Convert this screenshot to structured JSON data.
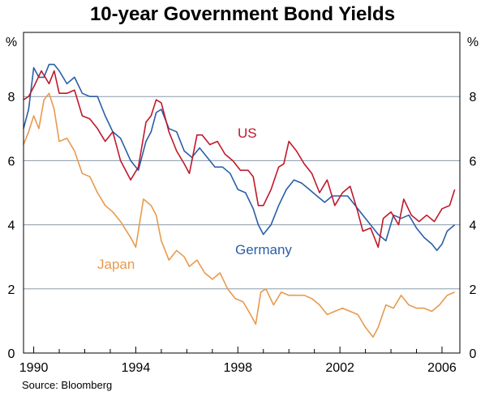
{
  "chart_data": {
    "type": "line",
    "title": "10-year Government Bond Yields",
    "source": "Source: Bloomberg",
    "y_unit_left": "%",
    "y_unit_right": "%",
    "ylim": [
      0,
      10
    ],
    "xlim": [
      1989.6,
      2006.7
    ],
    "y_ticks": [
      0,
      2,
      4,
      6,
      8
    ],
    "y_tick_labels": [
      "0",
      "2",
      "4",
      "6",
      "8"
    ],
    "x_ticks": [
      1990,
      1994,
      1998,
      2002,
      2006
    ],
    "x_tick_labels": [
      "1990",
      "1994",
      "1998",
      "2002",
      "2006"
    ],
    "grid": "horizontal at 2, 4, 6, 8",
    "legend": "inline labels",
    "series": [
      {
        "name": "US",
        "color": "#c0182b",
        "x": [
          1989.6,
          1989.8,
          1990.0,
          1990.3,
          1990.6,
          1990.8,
          1991.0,
          1991.3,
          1991.6,
          1991.9,
          1992.2,
          1992.5,
          1992.8,
          1993.1,
          1993.4,
          1993.8,
          1994.1,
          1994.4,
          1994.6,
          1994.8,
          1995.0,
          1995.3,
          1995.6,
          1995.9,
          1996.1,
          1996.4,
          1996.6,
          1996.9,
          1997.2,
          1997.5,
          1997.8,
          1998.1,
          1998.4,
          1998.6,
          1998.8,
          1999.0,
          1999.3,
          1999.6,
          1999.8,
          2000.0,
          2000.3,
          2000.6,
          2000.9,
          2001.2,
          2001.5,
          2001.8,
          2002.1,
          2002.4,
          2002.7,
          2002.9,
          2003.2,
          2003.5,
          2003.7,
          2004.0,
          2004.3,
          2004.5,
          2004.8,
          2005.1,
          2005.4,
          2005.7,
          2006.0,
          2006.3,
          2006.5
        ],
        "values": [
          7.9,
          8.0,
          8.3,
          8.8,
          8.4,
          8.8,
          8.1,
          8.1,
          8.2,
          7.4,
          7.3,
          7.0,
          6.6,
          6.9,
          6.0,
          5.4,
          5.8,
          7.2,
          7.4,
          7.9,
          7.8,
          6.9,
          6.3,
          5.9,
          5.6,
          6.8,
          6.8,
          6.5,
          6.6,
          6.2,
          6.0,
          5.7,
          5.7,
          5.5,
          4.6,
          4.6,
          5.1,
          5.8,
          5.9,
          6.6,
          6.3,
          5.9,
          5.6,
          5.0,
          5.4,
          4.6,
          5.0,
          5.2,
          4.4,
          3.8,
          3.9,
          3.3,
          4.2,
          4.4,
          4.0,
          4.8,
          4.3,
          4.1,
          4.3,
          4.1,
          4.5,
          4.6,
          5.1
        ]
      },
      {
        "name": "Germany",
        "color": "#2a5ea8",
        "x": [
          1989.6,
          1989.8,
          1990.0,
          1990.2,
          1990.4,
          1990.6,
          1990.8,
          1991.0,
          1991.3,
          1991.6,
          1991.9,
          1992.2,
          1992.5,
          1992.8,
          1993.1,
          1993.4,
          1993.8,
          1994.1,
          1994.4,
          1994.6,
          1994.8,
          1995.0,
          1995.3,
          1995.6,
          1995.9,
          1996.2,
          1996.5,
          1996.8,
          1997.1,
          1997.4,
          1997.7,
          1998.0,
          1998.3,
          1998.6,
          1998.8,
          1999.0,
          1999.3,
          1999.6,
          1999.9,
          2000.2,
          2000.5,
          2000.8,
          2001.1,
          2001.4,
          2001.7,
          2002.0,
          2002.3,
          2002.6,
          2002.9,
          2003.2,
          2003.5,
          2003.8,
          2004.1,
          2004.4,
          2004.7,
          2005.0,
          2005.3,
          2005.6,
          2005.8,
          2006.0,
          2006.2,
          2006.5
        ],
        "values": [
          7.0,
          7.6,
          8.9,
          8.6,
          8.6,
          9.0,
          9.0,
          8.8,
          8.4,
          8.6,
          8.1,
          8.0,
          8.0,
          7.4,
          6.9,
          6.7,
          6.0,
          5.7,
          6.6,
          6.9,
          7.5,
          7.6,
          7.0,
          6.9,
          6.3,
          6.1,
          6.4,
          6.1,
          5.8,
          5.8,
          5.6,
          5.1,
          5.0,
          4.5,
          4.0,
          3.7,
          4.0,
          4.6,
          5.1,
          5.4,
          5.3,
          5.1,
          4.9,
          4.7,
          4.9,
          4.9,
          4.9,
          4.6,
          4.3,
          4.0,
          3.7,
          3.5,
          4.3,
          4.2,
          4.3,
          3.9,
          3.6,
          3.4,
          3.2,
          3.4,
          3.8,
          4.0
        ]
      },
      {
        "name": "Japan",
        "color": "#e89a4e",
        "x": [
          1989.6,
          1989.8,
          1990.0,
          1990.2,
          1990.4,
          1990.6,
          1990.8,
          1991.0,
          1991.3,
          1991.6,
          1991.9,
          1992.2,
          1992.5,
          1992.8,
          1993.1,
          1993.4,
          1993.8,
          1994.0,
          1994.3,
          1994.6,
          1994.8,
          1995.0,
          1995.3,
          1995.6,
          1995.9,
          1996.1,
          1996.4,
          1996.7,
          1997.0,
          1997.3,
          1997.6,
          1997.9,
          1998.2,
          1998.5,
          1998.7,
          1998.9,
          1999.1,
          1999.4,
          1999.7,
          2000.0,
          2000.3,
          2000.6,
          2000.9,
          2001.2,
          2001.5,
          2001.8,
          2002.1,
          2002.4,
          2002.7,
          2003.0,
          2003.3,
          2003.5,
          2003.8,
          2004.1,
          2004.4,
          2004.7,
          2005.0,
          2005.3,
          2005.6,
          2005.9,
          2006.2,
          2006.5
        ],
        "values": [
          6.5,
          6.9,
          7.4,
          7.0,
          7.9,
          8.1,
          7.6,
          6.6,
          6.7,
          6.3,
          5.6,
          5.5,
          5.0,
          4.6,
          4.4,
          4.1,
          3.6,
          3.3,
          4.8,
          4.6,
          4.3,
          3.5,
          2.9,
          3.2,
          3.0,
          2.7,
          2.9,
          2.5,
          2.3,
          2.5,
          2.0,
          1.7,
          1.6,
          1.2,
          0.9,
          1.9,
          2.0,
          1.5,
          1.9,
          1.8,
          1.8,
          1.8,
          1.7,
          1.5,
          1.2,
          1.3,
          1.4,
          1.3,
          1.2,
          0.8,
          0.5,
          0.8,
          1.5,
          1.4,
          1.8,
          1.5,
          1.4,
          1.4,
          1.3,
          1.5,
          1.8,
          1.9
        ]
      }
    ]
  }
}
